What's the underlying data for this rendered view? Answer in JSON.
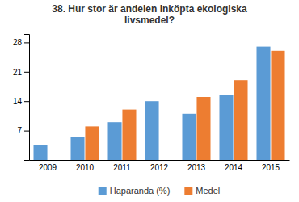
{
  "chart_data": {
    "type": "bar",
    "title": "38. Hur stor är andelen inköpta ekologiska\nlivsmedel?",
    "categories": [
      "2009",
      "2010",
      "2011",
      "2012",
      "2013",
      "2014",
      "2015"
    ],
    "series": [
      {
        "name": "Haparanda (%)",
        "color": "#5B9BD5",
        "values": [
          3.5,
          5.5,
          9.0,
          14.0,
          11.0,
          15.5,
          27.0
        ]
      },
      {
        "name": "Medel",
        "color": "#ED7D31",
        "values": [
          null,
          8.0,
          12.0,
          null,
          15.0,
          19.0,
          26.0
        ]
      }
    ],
    "ylim": [
      0,
      30
    ],
    "yticks": [
      7,
      14,
      21,
      28
    ],
    "grid": false,
    "legend": "bottom"
  }
}
